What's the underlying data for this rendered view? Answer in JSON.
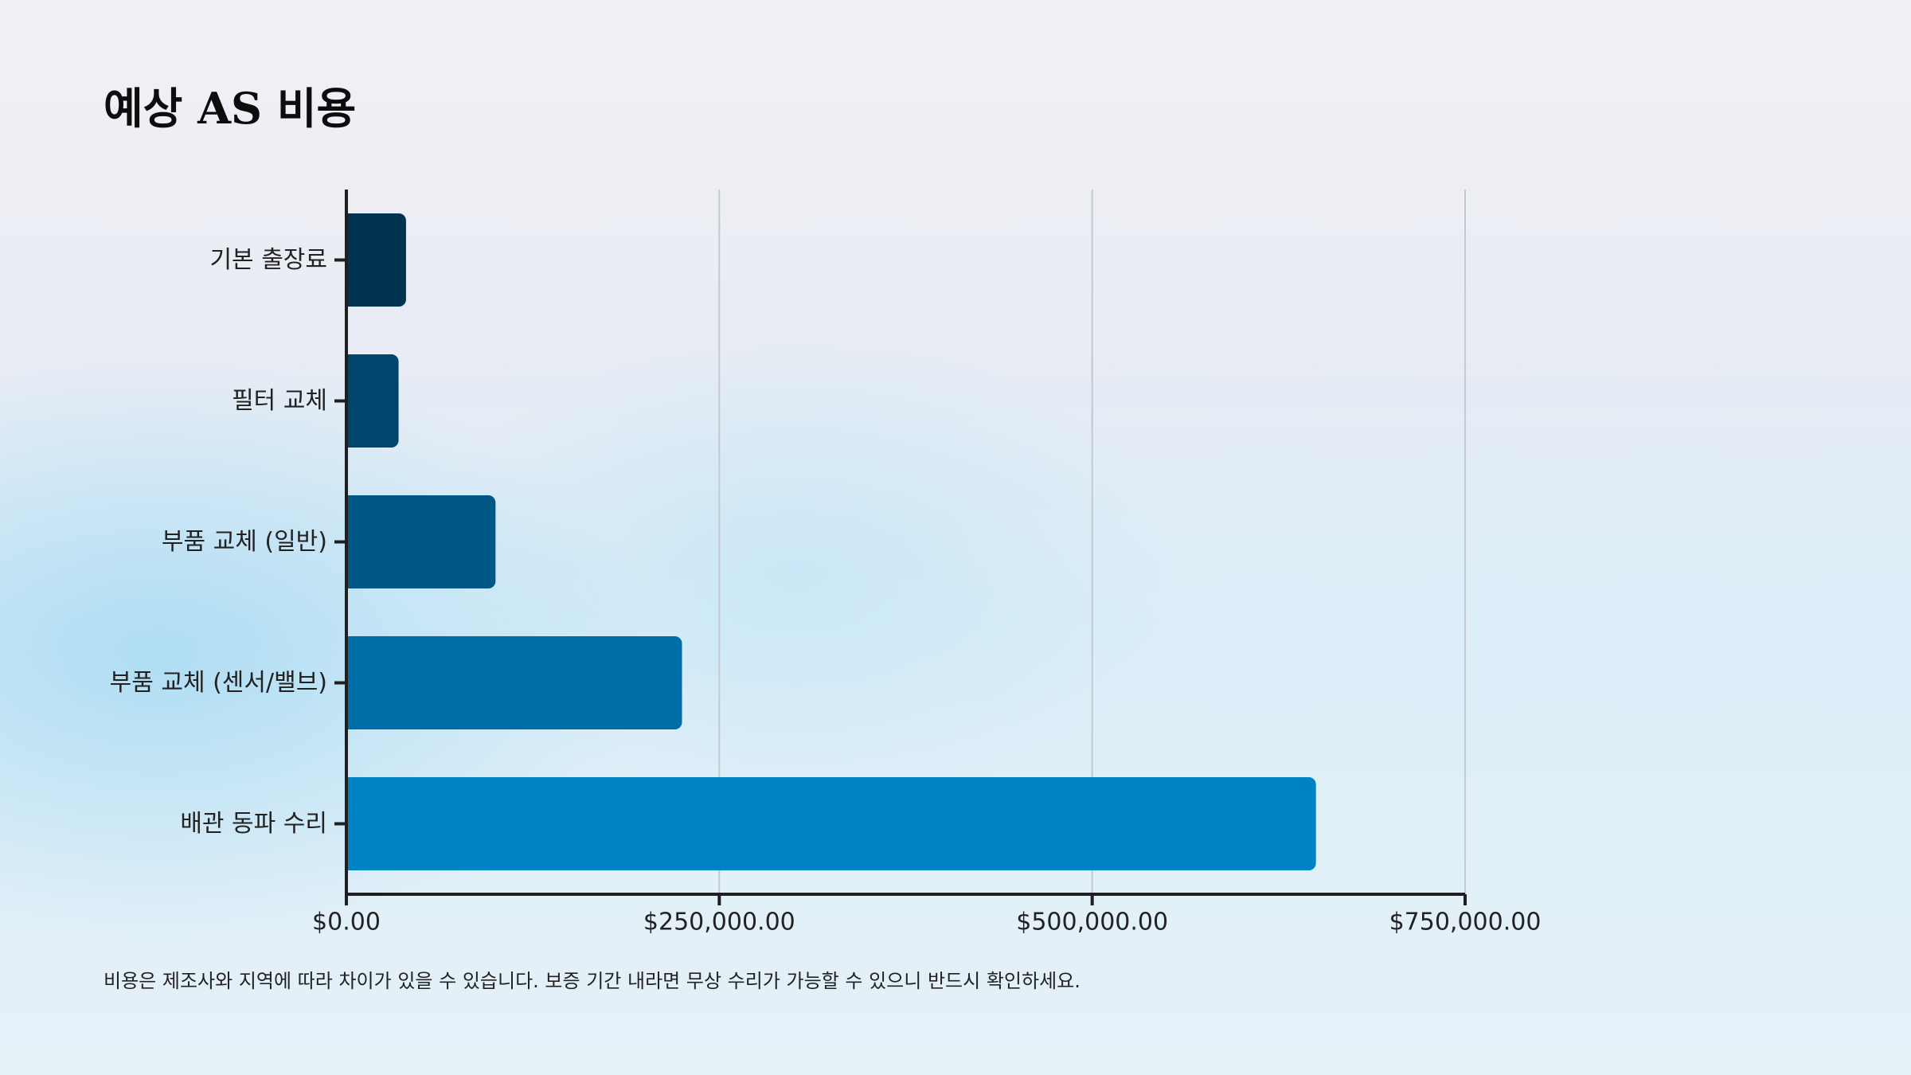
{
  "title": "예상 AS 비용",
  "footnote": "비용은 제조사와 지역에 따라 차이가 있을 수 있습니다. 보증 기간 내라면 무상 수리가 가능할 수 있으니 반드시 확인하세요.",
  "colors": {
    "axis": "#1f1f1f",
    "grid": "#c4c9d0",
    "bars": [
      "#003350",
      "#00456b",
      "#005886",
      "#006ea6",
      "#0083c4"
    ]
  },
  "chart_data": {
    "type": "bar",
    "orientation": "horizontal",
    "categories": [
      "기본 출장료",
      "필터 교체",
      "부품 교체 (일반)",
      "부품 교체 (센서/밸브)",
      "배관 동파 수리"
    ],
    "values": [
      40000,
      35000,
      100000,
      225000,
      650000
    ],
    "xlim": [
      0,
      750000
    ],
    "x_ticks": [
      0,
      250000,
      500000,
      750000
    ],
    "x_tick_labels": [
      "$0.00",
      "$250,000.00",
      "$500,000.00",
      "$750,000.00"
    ],
    "title": "예상 AS 비용",
    "xlabel": "",
    "ylabel": "",
    "grid": "vertical",
    "legend": "none"
  }
}
